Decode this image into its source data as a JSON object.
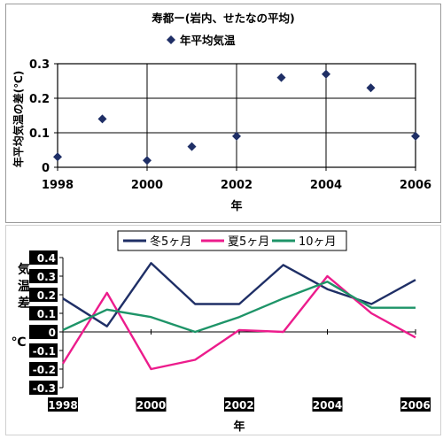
{
  "chart_data": [
    {
      "type": "scatter",
      "title": "寿都ー(岩内、せたなの平均)",
      "legend": {
        "label": "年平均気温",
        "position": "top-center",
        "marker": "diamond"
      },
      "xlabel": "年",
      "ylabel": "年平均気温の差(℃)",
      "xlim": [
        1998,
        2006
      ],
      "ylim": [
        0,
        0.3
      ],
      "xticks": [
        1998,
        2000,
        2002,
        2004,
        2006
      ],
      "yticks": [
        0,
        0.1,
        0.2,
        0.3
      ],
      "ytick_labels": [
        "0",
        "0.1",
        "0.2",
        "0.3"
      ],
      "grid": true,
      "marker_color": "#1f2f66",
      "points": [
        {
          "x": 1998,
          "y": 0.03
        },
        {
          "x": 1999,
          "y": 0.14
        },
        {
          "x": 2000,
          "y": 0.02
        },
        {
          "x": 2001,
          "y": 0.06
        },
        {
          "x": 2002,
          "y": 0.09
        },
        {
          "x": 2003,
          "y": 0.26
        },
        {
          "x": 2004,
          "y": 0.27
        },
        {
          "x": 2005,
          "y": 0.23
        },
        {
          "x": 2006,
          "y": 0.09
        }
      ]
    },
    {
      "type": "line",
      "legend_position": "top",
      "xlabel": "年",
      "ylabel_chars": [
        "気",
        "温",
        "差"
      ],
      "yunit": "℃",
      "xlim": [
        1998,
        2006
      ],
      "ylim": [
        -0.3,
        0.4
      ],
      "xticks": [
        1998,
        2000,
        2002,
        2004,
        2006
      ],
      "yticks": [
        0.4,
        0.3,
        0.2,
        0.1,
        0,
        -0.1,
        -0.2,
        -0.3
      ],
      "ytick_labels": [
        "0.4",
        "0.3",
        "0.2",
        "0.1",
        "0",
        "-0.1",
        "-0.2",
        "-0.3"
      ],
      "grid": false,
      "x": [
        1998,
        1999,
        2000,
        2001,
        2002,
        2003,
        2004,
        2005,
        2006
      ],
      "series": [
        {
          "name": "冬5ヶ月",
          "color": "#1f2f66",
          "values": [
            0.18,
            0.03,
            0.37,
            0.15,
            0.15,
            0.36,
            0.23,
            0.15,
            0.28
          ]
        },
        {
          "name": "夏5ヶ月",
          "color": "#ec1c8c",
          "values": [
            -0.17,
            0.21,
            -0.2,
            -0.15,
            0.01,
            0.0,
            0.3,
            0.1,
            -0.03
          ]
        },
        {
          "name": "10ヶ月",
          "color": "#1e9468",
          "values": [
            0.01,
            0.12,
            0.08,
            0.0,
            0.08,
            0.18,
            0.27,
            0.13,
            0.13
          ]
        }
      ]
    }
  ]
}
